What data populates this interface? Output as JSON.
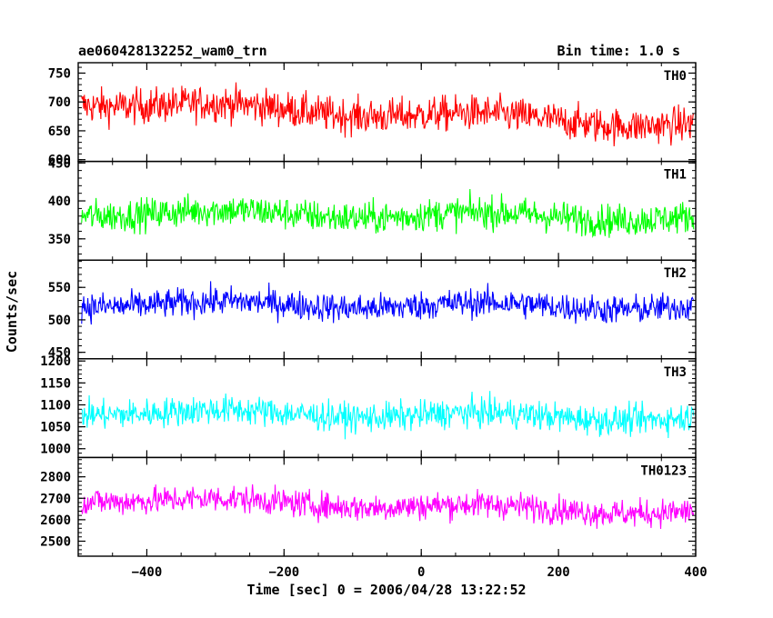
{
  "header": {
    "source_name": "ae060428132252_wam0_trn",
    "bin_time": "Bin time: 1.0 s"
  },
  "chart_data": {
    "type": "line",
    "xlabel": "Time [sec] 0 = 2006/04/28 13:22:52",
    "ylabel": "Counts/sec",
    "xlim": [
      -500,
      400
    ],
    "x_ticks": [
      -400,
      -200,
      0,
      200,
      400
    ],
    "panels": [
      {
        "name": "TH0",
        "color": "#ff0000",
        "ylim": [
          597,
          768
        ],
        "y_ticks": [
          600,
          650,
          700,
          750
        ],
        "mean_start": 700,
        "mean_end": 660,
        "noise": 55
      },
      {
        "name": "TH1",
        "color": "#00ff00",
        "ylim": [
          322,
          452
        ],
        "y_ticks": [
          350,
          400,
          450
        ],
        "mean_start": 385,
        "mean_end": 378,
        "noise": 38
      },
      {
        "name": "TH2",
        "color": "#0000ff",
        "ylim": [
          440,
          592
        ],
        "y_ticks": [
          450,
          500,
          550
        ],
        "mean_start": 525,
        "mean_end": 520,
        "noise": 40
      },
      {
        "name": "TH3",
        "color": "#00ffff",
        "ylim": [
          980,
          1205
        ],
        "y_ticks": [
          1000,
          1050,
          1100,
          1150,
          1200
        ],
        "mean_start": 1085,
        "mean_end": 1070,
        "noise": 60
      },
      {
        "name": "TH0123",
        "color": "#ff00ff",
        "ylim": [
          2430,
          2890
        ],
        "y_ticks": [
          2500,
          2600,
          2700,
          2800
        ],
        "mean_start": 2700,
        "mean_end": 2635,
        "noise": 115
      }
    ]
  }
}
